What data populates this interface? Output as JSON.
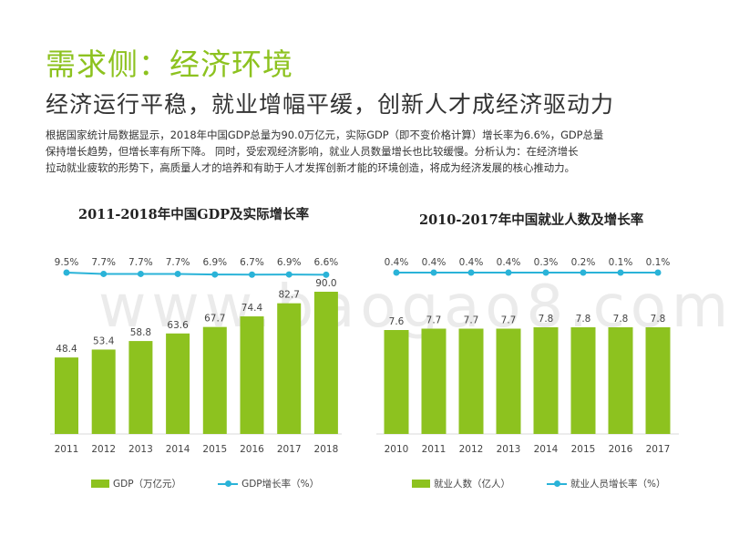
{
  "page": {
    "title": "需求侧：经济环境",
    "subtitle": "经济运行平稳，就业增幅平缓，创新人才成经济驱动力",
    "paragraph": [
      "根据国家统计局数据显示，2018年中国GDP总量为90.0万亿元，实际GDP（即不变价格计算）增长率为6.6%，GDP总量",
      "保持增长趋势，但增长率有所下降。 同时，受宏观经济影响，就业人员数量增长也比较缓慢。分析认为：在经济增长",
      "拉动就业疲软的形势下，高质量人才的培养和有助于人才发挥创新才能的环境创造，将成为经济发展的核心推动力。"
    ],
    "watermark": "www.baogao8.com"
  },
  "colors": {
    "accent": "#8dc21f",
    "line": "#2ab3d8"
  },
  "chart_data": [
    {
      "type": "bar",
      "title": "2011-2018年中国GDP及实际增长率",
      "categories": [
        "2011",
        "2012",
        "2013",
        "2014",
        "2015",
        "2016",
        "2017",
        "2018"
      ],
      "series": [
        {
          "name": "GDP（万亿元）",
          "type": "bar",
          "values": [
            48.4,
            53.4,
            58.8,
            63.6,
            67.7,
            74.4,
            82.7,
            90.0
          ],
          "labels": [
            "48.4",
            "53.4",
            "58.8",
            "63.6",
            "67.7",
            "74.4",
            "82.7",
            "90.0"
          ]
        },
        {
          "name": "GDP增长率（%）",
          "type": "line",
          "values": [
            9.5,
            7.7,
            7.7,
            7.7,
            6.9,
            6.7,
            6.9,
            6.6
          ],
          "labels": [
            "9.5%",
            "7.7%",
            "7.7%",
            "7.7%",
            "6.9%",
            "6.7%",
            "6.9%",
            "6.6%"
          ]
        }
      ],
      "ylim": [
        0,
        90
      ],
      "legend": "bottom"
    },
    {
      "type": "bar",
      "title": "2010-2017年中国就业人数及增长率",
      "categories": [
        "2010",
        "2011",
        "2012",
        "2013",
        "2014",
        "2015",
        "2016",
        "2017"
      ],
      "series": [
        {
          "name": "就业人数（亿人）",
          "type": "bar",
          "values": [
            7.6,
            7.7,
            7.7,
            7.7,
            7.8,
            7.8,
            7.8,
            7.8
          ],
          "labels": [
            "7.6",
            "7.7",
            "7.7",
            "7.7",
            "7.8",
            "7.8",
            "7.8",
            "7.8"
          ]
        },
        {
          "name": "就业人员增长率（%）",
          "type": "line",
          "values": [
            0.4,
            0.4,
            0.4,
            0.4,
            0.3,
            0.2,
            0.1,
            0.1
          ],
          "labels": [
            "0.4%",
            "0.4%",
            "0.4%",
            "0.4%",
            "0.3%",
            "0.2%",
            "0.1%",
            "0.1%"
          ]
        }
      ],
      "ylim": [
        0,
        7.8
      ],
      "legend": "bottom"
    }
  ]
}
